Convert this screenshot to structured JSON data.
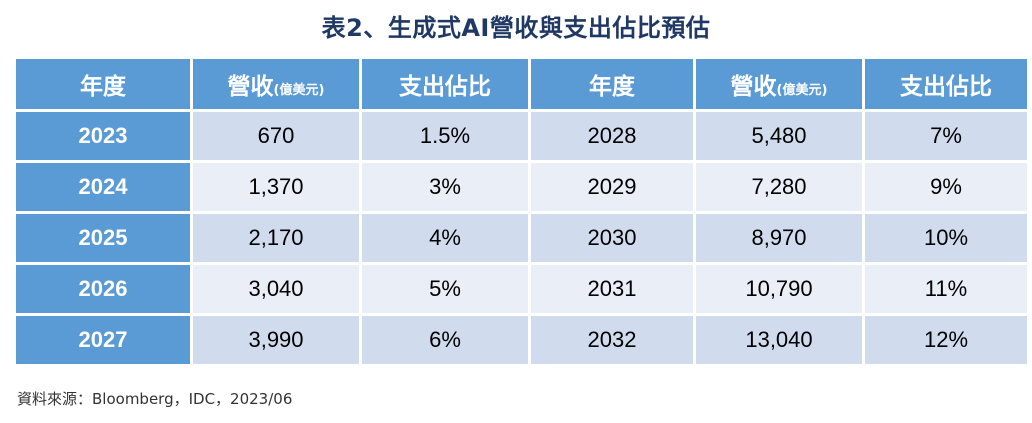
{
  "title": "表2、生成式AI營收與支出佔比預估",
  "header": {
    "year": "年度",
    "revenue": "營收",
    "revenue_unit": "(億美元)",
    "spend": "支出佔比"
  },
  "source": "資料來源：Bloomberg，IDC，2023/06",
  "chart_data": {
    "type": "table",
    "title": "表2、生成式AI營收與支出佔比預估",
    "columns": [
      "年度",
      "營收(億美元)",
      "支出佔比"
    ],
    "rows": [
      {
        "year": "2023",
        "revenue": "670",
        "spend": "1.5%"
      },
      {
        "year": "2024",
        "revenue": "1,370",
        "spend": "3%"
      },
      {
        "year": "2025",
        "revenue": "2,170",
        "spend": "4%"
      },
      {
        "year": "2026",
        "revenue": "3,040",
        "spend": "5%"
      },
      {
        "year": "2027",
        "revenue": "3,990",
        "spend": "6%"
      },
      {
        "year": "2028",
        "revenue": "5,480",
        "spend": "7%"
      },
      {
        "year": "2029",
        "revenue": "7,280",
        "spend": "9%"
      },
      {
        "year": "2030",
        "revenue": "8,970",
        "spend": "10%"
      },
      {
        "year": "2031",
        "revenue": "10,790",
        "spend": "11%"
      },
      {
        "year": "2032",
        "revenue": "13,040",
        "spend": "12%"
      }
    ]
  }
}
